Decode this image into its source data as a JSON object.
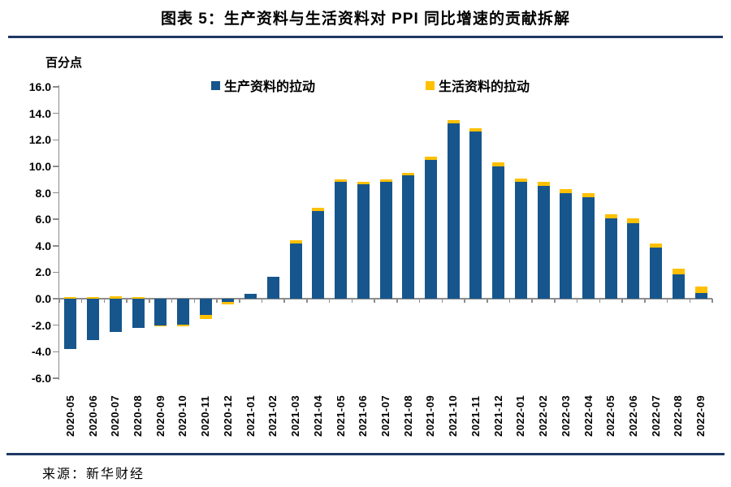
{
  "title": "图表 5：生产资料与生活资料对 PPI 同比增速的贡献拆解",
  "unit_label": "百分点",
  "source": "来源：新华财经",
  "colors": {
    "production_blue": "#17568C",
    "living_yellow": "#FFC000",
    "divider_navy": "#1F3864",
    "axis_gray": "#8C8C8C"
  },
  "chart_data": {
    "type": "bar",
    "stacked": true,
    "title": "图表 5：生产资料与生活资料对 PPI 同比增速的贡献拆解",
    "ylabel": "百分点",
    "ylim": [
      -6.0,
      16.0
    ],
    "ytick_step": 2.0,
    "ytick_labels": [
      "16.0",
      "14.0",
      "12.0",
      "10.0",
      "8.0",
      "6.0",
      "4.0",
      "2.0",
      "0.0",
      "-2.0",
      "-4.0",
      "-6.0"
    ],
    "grid": false,
    "legend_position": "top",
    "categories": [
      "2020-05",
      "2020-06",
      "2020-07",
      "2020-08",
      "2020-09",
      "2020-10",
      "2020-11",
      "2020-12",
      "2021-01",
      "2021-02",
      "2021-03",
      "2021-04",
      "2021-05",
      "2021-06",
      "2021-07",
      "2021-08",
      "2021-09",
      "2021-10",
      "2021-11",
      "2021-12",
      "2022-01",
      "2022-02",
      "2022-03",
      "2022-04",
      "2022-05",
      "2022-06",
      "2022-07",
      "2022-08",
      "2022-09"
    ],
    "series": [
      {
        "name": "生产资料的拉动",
        "color": "#17568C",
        "values": [
          -3.8,
          -3.1,
          -2.5,
          -2.2,
          -2.0,
          -1.95,
          -1.2,
          -0.25,
          0.35,
          1.65,
          4.2,
          6.65,
          8.85,
          8.65,
          8.8,
          9.3,
          10.5,
          13.25,
          12.65,
          10.0,
          8.8,
          8.5,
          7.95,
          7.65,
          6.1,
          5.7,
          3.85,
          1.85,
          0.45
        ]
      },
      {
        "name": "生活资料的拉动",
        "color": "#FFC000",
        "values": [
          0.1,
          0.1,
          0.2,
          0.15,
          -0.05,
          -0.15,
          -0.3,
          -0.15,
          0.0,
          0.0,
          0.2,
          0.2,
          0.15,
          0.15,
          0.2,
          0.2,
          0.2,
          0.25,
          0.25,
          0.3,
          0.3,
          0.3,
          0.35,
          0.35,
          0.3,
          0.4,
          0.35,
          0.45,
          0.45
        ]
      }
    ]
  }
}
